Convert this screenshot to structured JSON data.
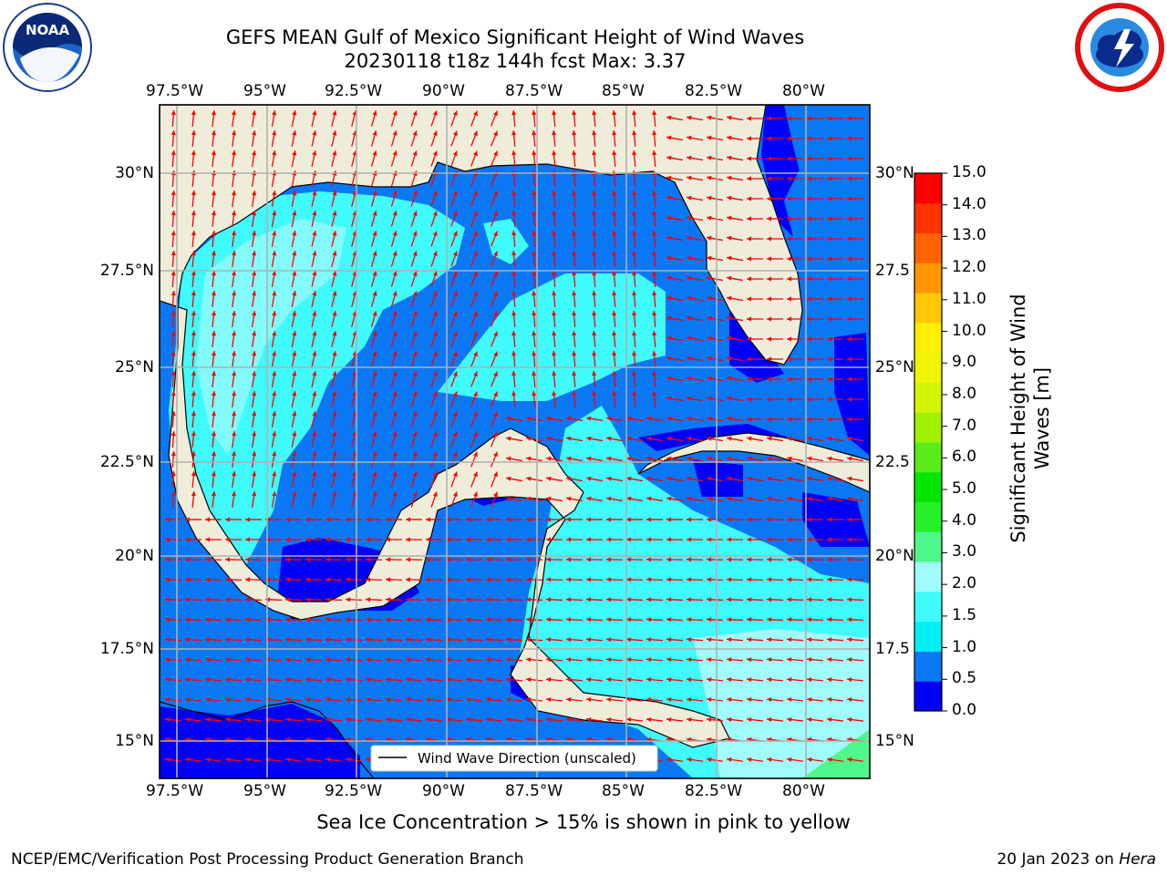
{
  "title_line1": "GEFS MEAN Gulf of Mexico Significant Height of Wind Waves",
  "title_line2": "20230118 t18z 144h fcst   Max: 3.37",
  "lon_labels": [
    "97.5°W",
    "95°W",
    "92.5°W",
    "90°W",
    "87.5°W",
    "85°W",
    "82.5°W",
    "80°W"
  ],
  "lat_labels": [
    "30°N",
    "27.5°N",
    "25°N",
    "22.5°N",
    "20°N",
    "17.5°N",
    "15°N"
  ],
  "lat_labels_right": [
    "30°N",
    "27.5",
    "25°N",
    "22.5",
    "20°N",
    "17.5",
    "15°N"
  ],
  "legend_label": "Wind Wave Direction (unscaled)",
  "colorbar": {
    "title": "Significant Height of Wind Waves [m]",
    "ticks": [
      "0.0",
      "0.5",
      "1.0",
      "1.5",
      "2.0",
      "3.0",
      "4.0",
      "5.0",
      "6.0",
      "7.0",
      "8.0",
      "9.0",
      "10.0",
      "11.0",
      "12.0",
      "13.0",
      "14.0",
      "15.0"
    ],
    "colors": [
      "#0000f5",
      "#0a78f5",
      "#00f0f5",
      "#40fbfb",
      "#a0fbfb",
      "#4ef88a",
      "#28f028",
      "#00e600",
      "#5aeb1a",
      "#a0f000",
      "#d2f500",
      "#f0f500",
      "#fff000",
      "#ffc800",
      "#ff9600",
      "#ff6400",
      "#ff3200",
      "#ff0000"
    ]
  },
  "sub_note": "Sea Ice Concentration > 15% is shown in pink to yellow",
  "footer_left": "NCEP/EMC/Verification Post Processing Product Generation Branch",
  "footer_date": "20 Jan 2023 on",
  "footer_host": "Hera",
  "logos": {
    "left": "noaa-logo",
    "left_text": "NOAA",
    "right": "nws-logo"
  },
  "colors": {
    "land": "#efedda",
    "arrow": "#ff0000",
    "grid": "#b0b0b0"
  }
}
